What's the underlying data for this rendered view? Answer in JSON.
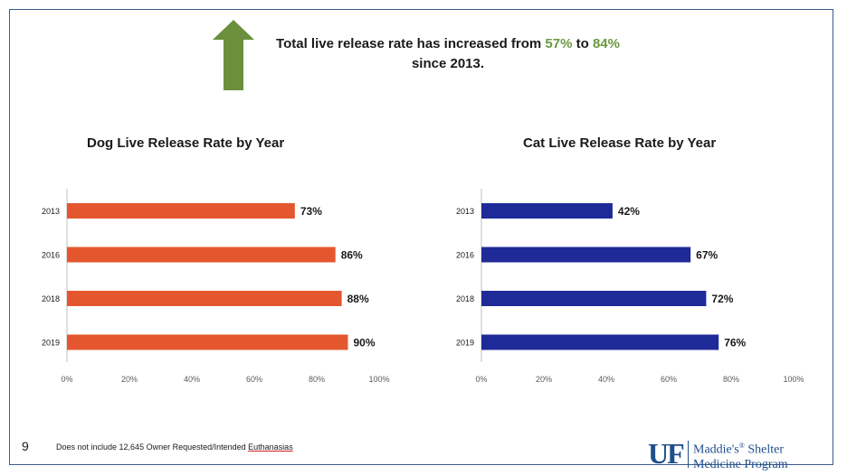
{
  "headline": {
    "part1": "Total live release rate has increased from ",
    "from_value": "57%",
    "part2": " to ",
    "to_value": "84%",
    "line2": "since 2013."
  },
  "colors": {
    "dog": "#e4572e",
    "cat": "#1f2a99",
    "arrow": "#6b8f3c",
    "accent_green": "#6a9a3f",
    "brand": "#1f4e8c"
  },
  "chart_data": [
    {
      "type": "bar",
      "orientation": "horizontal",
      "title": "Dog Live Release Rate by Year",
      "categories": [
        "2013",
        "2016",
        "2018",
        "2019"
      ],
      "values": [
        73,
        86,
        88,
        90
      ],
      "labels": [
        "73%",
        "86%",
        "88%",
        "90%"
      ],
      "xlim": [
        0,
        100
      ],
      "ticks": [
        "0%",
        "20%",
        "40%",
        "60%",
        "80%",
        "100%"
      ]
    },
    {
      "type": "bar",
      "orientation": "horizontal",
      "title": "Cat Live Release Rate by Year",
      "categories": [
        "2013",
        "2016",
        "2018",
        "2019"
      ],
      "values": [
        42,
        67,
        72,
        76
      ],
      "labels": [
        "42%",
        "67%",
        "72%",
        "76%"
      ],
      "xlim": [
        0,
        100
      ],
      "ticks": [
        "0%",
        "20%",
        "40%",
        "60%",
        "80%",
        "100%"
      ]
    }
  ],
  "footer": {
    "page_number": "9",
    "footnote_prefix": "Does not include 12,645 Owner Requested/Intended ",
    "footnote_underlined": "Euthanasias",
    "logo_mark": "UF",
    "logo_line1": "Maddie's",
    "logo_reg": "®",
    "logo_line1b": " Shelter",
    "logo_line2": "Medicine Program"
  }
}
